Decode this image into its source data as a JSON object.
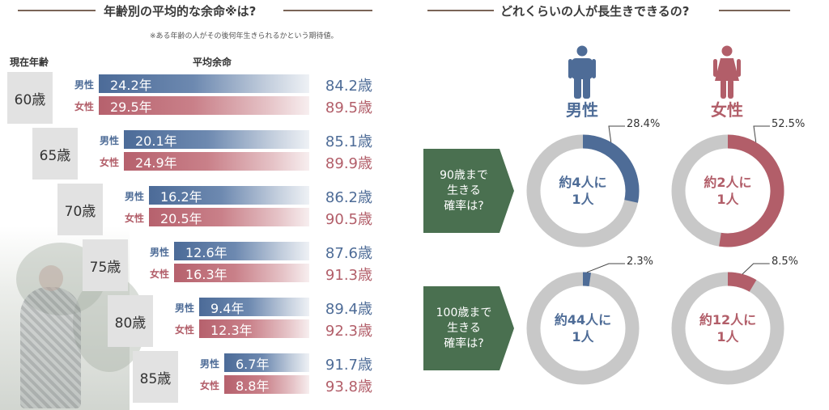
{
  "left": {
    "title": "年齢別の平均的な余命※は?",
    "footnote": "※ある年齢の人がその後何年生きられるかという期待値。",
    "col_age": "現在年齢",
    "col_remaining": "平均余命",
    "male_label": "男性",
    "female_label": "女性"
  },
  "right": {
    "title": "どれくらいの人が長生きできるの?",
    "male_head": "男性",
    "female_head": "女性"
  },
  "colors": {
    "male": "#4e6c97",
    "female": "#b25e69",
    "question_box": "#4a7050",
    "donut_gray": "#c8c8c8"
  },
  "chart_data": [
    {
      "type": "bar",
      "title": "年齢別の平均的な余命",
      "categories": [
        "60歳",
        "65歳",
        "70歳",
        "75歳",
        "80歳",
        "85歳"
      ],
      "series": [
        {
          "name": "男性",
          "values": [
            24.2,
            20.1,
            16.2,
            12.6,
            9.4,
            6.7
          ],
          "labels": [
            "24.2年",
            "20.1年",
            "16.2年",
            "12.6年",
            "9.4年",
            "6.7年"
          ],
          "life_expectancy": [
            "84.2歳",
            "85.1歳",
            "86.2歳",
            "87.6歳",
            "89.4歳",
            "91.7歳"
          ]
        },
        {
          "name": "女性",
          "values": [
            29.5,
            24.9,
            20.5,
            16.3,
            12.3,
            8.8
          ],
          "labels": [
            "29.5年",
            "24.9年",
            "20.5年",
            "16.3年",
            "12.3年",
            "8.8年"
          ],
          "life_expectancy": [
            "89.5歳",
            "89.9歳",
            "90.5歳",
            "91.3歳",
            "92.3歳",
            "93.8歳"
          ]
        }
      ]
    },
    {
      "type": "pie",
      "title": "どれくらいの人が長生きできるの?",
      "rows": [
        {
          "question": "90歳まで生きる確率は?",
          "question_lines": [
            "90歳まで",
            "生きる",
            "確率は?"
          ],
          "male": {
            "value": 28.4,
            "label": "28.4%",
            "center": [
              "約4人に",
              "1人"
            ]
          },
          "female": {
            "value": 52.5,
            "label": "52.5%",
            "center": [
              "約2人に",
              "1人"
            ]
          }
        },
        {
          "question": "100歳まで生きる確率は?",
          "question_lines": [
            "100歳まで",
            "生きる",
            "確率は?"
          ],
          "male": {
            "value": 2.3,
            "label": "2.3%",
            "center": [
              "約44人に",
              "1人"
            ]
          },
          "female": {
            "value": 8.5,
            "label": "8.5%",
            "center": [
              "約12人に",
              "1人"
            ]
          }
        }
      ]
    }
  ]
}
